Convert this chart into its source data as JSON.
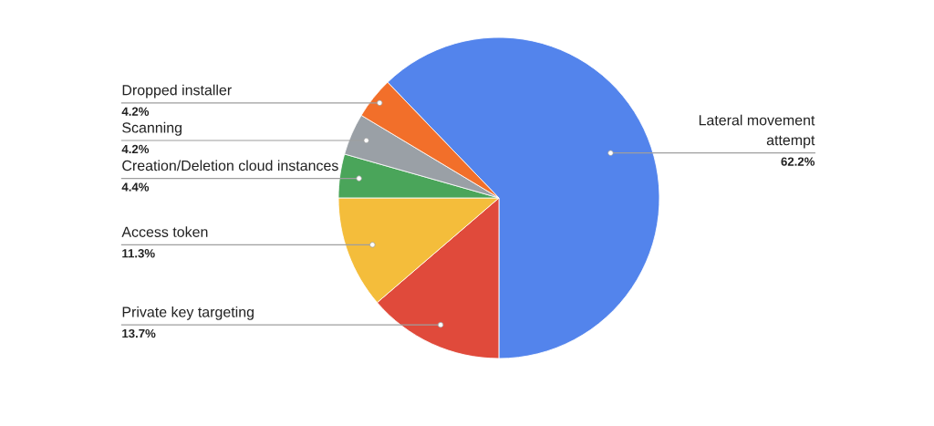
{
  "chart_data": {
    "type": "pie",
    "categories": [
      "Lateral movement attempt",
      "Private key targeting",
      "Access token",
      "Creation/Deletion cloud instances",
      "Scanning",
      "Dropped installer"
    ],
    "values": [
      62.2,
      13.7,
      11.3,
      4.4,
      4.2,
      4.2
    ],
    "colors": [
      "#5384ec",
      "#e04a3b",
      "#f4bd3b",
      "#4aa55a",
      "#9aa0a6",
      "#f26f2a"
    ],
    "value_labels": [
      "62.2%",
      "13.7%",
      "11.3%",
      "4.4%",
      "4.2%",
      "4.2%"
    ],
    "legend": false
  }
}
